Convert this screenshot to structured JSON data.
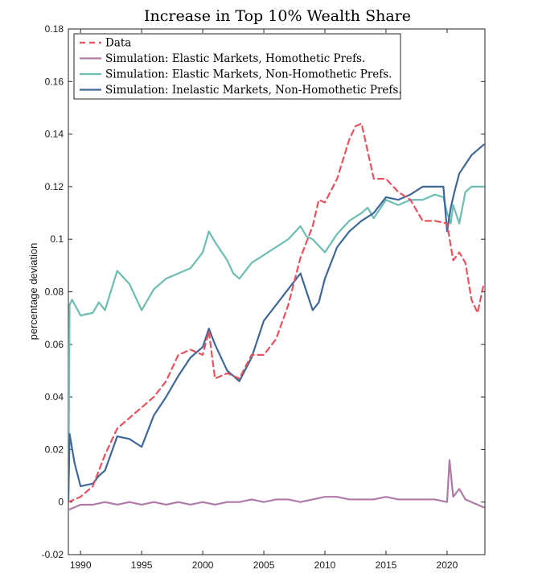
{
  "chart_data": {
    "type": "line",
    "title": "Increase in Top 10% Wealth Share",
    "xlabel": "",
    "ylabel": "percentage deviation",
    "xlim": [
      1989,
      2023.1
    ],
    "ylim": [
      -0.02,
      0.18
    ],
    "x_ticks": [
      1990,
      1995,
      2000,
      2005,
      2010,
      2015,
      2020
    ],
    "x_tick_labels": [
      "1990",
      "1995",
      "2000",
      "2005",
      "2010",
      "2015",
      "2020"
    ],
    "y_ticks": [
      -0.02,
      0,
      0.02,
      0.04,
      0.06,
      0.08,
      0.1,
      0.12,
      0.14,
      0.16,
      0.18
    ],
    "y_tick_labels": [
      "-0.02",
      "0",
      "0.02",
      "0.04",
      "0.06",
      "0.08",
      "0.1",
      "0.12",
      "0.14",
      "0.16",
      "0.18"
    ],
    "grid": false,
    "legend_position": "top-left",
    "series": [
      {
        "name": "Data",
        "style": "dashed",
        "color": "#e8515e",
        "x": [
          1989,
          1990,
          1991,
          1992,
          1993,
          1994,
          1995,
          1996,
          1997,
          1998,
          1999,
          2000,
          2000.5,
          2001,
          2001.5,
          2002,
          2003,
          2004,
          2005,
          2006,
          2007,
          2008,
          2009,
          2009.5,
          2010,
          2011,
          2012,
          2012.5,
          2013,
          2014,
          2015,
          2016,
          2017,
          2018,
          2019,
          2020,
          2020.5,
          2021,
          2021.5,
          2022,
          2022.5,
          2023
        ],
        "values": [
          0.0,
          0.002,
          0.006,
          0.018,
          0.028,
          0.032,
          0.036,
          0.04,
          0.046,
          0.056,
          0.058,
          0.056,
          0.065,
          0.047,
          0.048,
          0.049,
          0.047,
          0.056,
          0.056,
          0.062,
          0.075,
          0.093,
          0.105,
          0.115,
          0.114,
          0.123,
          0.138,
          0.143,
          0.144,
          0.123,
          0.123,
          0.118,
          0.115,
          0.107,
          0.107,
          0.106,
          0.092,
          0.095,
          0.091,
          0.077,
          0.072,
          0.083
        ]
      },
      {
        "name": "Simulation: Elastic Markets, Homothetic Prefs.",
        "style": "solid",
        "color": "#b07aa8",
        "x": [
          1989,
          1990,
          1991,
          1992,
          1993,
          1994,
          1995,
          1996,
          1997,
          1998,
          1999,
          2000,
          2001,
          2002,
          2003,
          2004,
          2005,
          2006,
          2007,
          2008,
          2009,
          2010,
          2011,
          2012,
          2013,
          2014,
          2015,
          2016,
          2017,
          2018,
          2019,
          2020,
          2020.2,
          2020.5,
          2021,
          2021.5,
          2022,
          2023
        ],
        "values": [
          -0.003,
          -0.001,
          -0.001,
          0.0,
          -0.001,
          0.0,
          -0.001,
          0.0,
          -0.001,
          0.0,
          -0.001,
          0.0,
          -0.001,
          0.0,
          0.0,
          0.001,
          0.0,
          0.001,
          0.001,
          0.0,
          0.001,
          0.002,
          0.002,
          0.001,
          0.001,
          0.001,
          0.002,
          0.001,
          0.001,
          0.001,
          0.001,
          0.0,
          0.016,
          0.002,
          0.005,
          0.001,
          0.0,
          -0.002
        ]
      },
      {
        "name": "Simulation: Elastic Markets, Non-Homothetic Prefs.",
        "style": "solid",
        "color": "#6dbdb3",
        "x": [
          1989,
          1989.1,
          1989.3,
          1990,
          1991,
          1991.5,
          1992,
          1993,
          1994,
          1995,
          1996,
          1997,
          1998,
          1999,
          2000,
          2000.5,
          2001,
          2002,
          2002.5,
          2003,
          2004,
          2005,
          2006,
          2007,
          2008,
          2008.5,
          2009,
          2010,
          2011,
          2012,
          2013,
          2013.5,
          2014,
          2015,
          2016,
          2017,
          2018,
          2019,
          2019.7,
          2020,
          2020.3,
          2020.5,
          2021,
          2021.5,
          2022,
          2023
        ],
        "values": [
          0.0,
          0.075,
          0.077,
          0.071,
          0.072,
          0.076,
          0.073,
          0.088,
          0.083,
          0.073,
          0.081,
          0.085,
          0.087,
          0.089,
          0.095,
          0.103,
          0.099,
          0.092,
          0.087,
          0.085,
          0.091,
          0.094,
          0.097,
          0.1,
          0.105,
          0.101,
          0.1,
          0.095,
          0.102,
          0.107,
          0.11,
          0.112,
          0.108,
          0.115,
          0.113,
          0.115,
          0.115,
          0.117,
          0.116,
          0.11,
          0.106,
          0.113,
          0.106,
          0.118,
          0.12,
          0.12
        ]
      },
      {
        "name": "Simulation: Inelastic Markets, Non-Homothetic Prefs.",
        "style": "solid",
        "color": "#3f6898",
        "x": [
          1989,
          1989.1,
          1989.5,
          1990,
          1991,
          1991.5,
          1992,
          1993,
          1994,
          1995,
          1996,
          1997,
          1998,
          1999,
          2000,
          2000.5,
          2001,
          2002,
          2003,
          2004,
          2005,
          2006,
          2007,
          2008,
          2008.5,
          2009,
          2009.5,
          2010,
          2011,
          2012,
          2013,
          2014,
          2015,
          2016,
          2017,
          2018,
          2019,
          2019.7,
          2020,
          2020.3,
          2020.6,
          2021,
          2022,
          2023
        ],
        "values": [
          0.0,
          0.026,
          0.015,
          0.006,
          0.007,
          0.01,
          0.012,
          0.025,
          0.024,
          0.021,
          0.033,
          0.04,
          0.048,
          0.055,
          0.059,
          0.066,
          0.06,
          0.05,
          0.046,
          0.055,
          0.069,
          0.075,
          0.081,
          0.087,
          0.08,
          0.073,
          0.076,
          0.085,
          0.097,
          0.103,
          0.107,
          0.11,
          0.116,
          0.115,
          0.117,
          0.12,
          0.12,
          0.12,
          0.103,
          0.112,
          0.118,
          0.125,
          0.132,
          0.136
        ]
      }
    ]
  }
}
